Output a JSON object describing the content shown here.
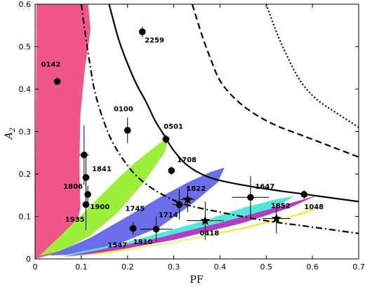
{
  "chart_data": {
    "type": "scatter",
    "xlabel": "PF",
    "ylabel_main": "A",
    "ylabel_sub": "2",
    "xlim": [
      0,
      0.7
    ],
    "ylim": [
      0,
      0.6
    ],
    "xticks": [
      "0",
      "0.1",
      "0.2",
      "0.3",
      "0.4",
      "0.5",
      "0.6",
      "0.7"
    ],
    "yticks": [
      "0",
      "0.1",
      "0.2",
      "0.3",
      "0.4",
      "0.5",
      "0.6"
    ],
    "grid": false,
    "colors": {
      "pink": "#f0568c",
      "green": "#9df03a",
      "blue": "#6a6ee8",
      "cyan": "#4ee8d8",
      "purple": "#b43cc8",
      "yellow": "#f0f040"
    },
    "regions": [
      {
        "color": "pink",
        "boundary": [
          [
            0,
            0
          ],
          [
            0.003,
            0.6
          ],
          [
            0.115,
            0.6
          ],
          [
            0.12,
            0.54
          ],
          [
            0.108,
            0.45
          ],
          [
            0.098,
            0.34
          ],
          [
            0.096,
            0.22
          ],
          [
            0.098,
            0.12
          ],
          [
            0.085,
            0.05
          ],
          [
            0.05,
            0.015
          ]
        ]
      },
      {
        "color": "green",
        "boundary": [
          [
            0.01,
            0.008
          ],
          [
            0.06,
            0.06
          ],
          [
            0.12,
            0.125
          ],
          [
            0.18,
            0.19
          ],
          [
            0.22,
            0.23
          ],
          [
            0.26,
            0.265
          ],
          [
            0.29,
            0.288
          ],
          [
            0.28,
            0.25
          ],
          [
            0.235,
            0.18
          ],
          [
            0.18,
            0.11
          ],
          [
            0.12,
            0.055
          ],
          [
            0.06,
            0.02
          ]
        ]
      },
      {
        "color": "blue",
        "boundary": [
          [
            0.03,
            0.008
          ],
          [
            0.12,
            0.05
          ],
          [
            0.2,
            0.1
          ],
          [
            0.27,
            0.145
          ],
          [
            0.33,
            0.18
          ],
          [
            0.38,
            0.205
          ],
          [
            0.41,
            0.215
          ],
          [
            0.395,
            0.18
          ],
          [
            0.34,
            0.13
          ],
          [
            0.27,
            0.075
          ],
          [
            0.18,
            0.035
          ],
          [
            0.1,
            0.012
          ]
        ]
      },
      {
        "color": "cyan",
        "boundary": [
          [
            0.05,
            0.006
          ],
          [
            0.2,
            0.04
          ],
          [
            0.35,
            0.085
          ],
          [
            0.45,
            0.12
          ],
          [
            0.52,
            0.14
          ],
          [
            0.56,
            0.148
          ],
          [
            0.52,
            0.12
          ],
          [
            0.42,
            0.085
          ],
          [
            0.3,
            0.05
          ],
          [
            0.15,
            0.018
          ]
        ]
      },
      {
        "color": "purple",
        "boundary": [
          [
            0.06,
            0.005
          ],
          [
            0.25,
            0.045
          ],
          [
            0.4,
            0.085
          ],
          [
            0.5,
            0.115
          ],
          [
            0.58,
            0.14
          ],
          [
            0.61,
            0.15
          ],
          [
            0.55,
            0.12
          ],
          [
            0.45,
            0.085
          ],
          [
            0.3,
            0.045
          ],
          [
            0.15,
            0.015
          ]
        ]
      },
      {
        "color": "yellow",
        "boundary": [
          [
            0.07,
            0.004
          ],
          [
            0.3,
            0.04
          ],
          [
            0.45,
            0.075
          ],
          [
            0.55,
            0.1
          ],
          [
            0.62,
            0.125
          ],
          [
            0.645,
            0.135
          ],
          [
            0.58,
            0.105
          ],
          [
            0.45,
            0.07
          ],
          [
            0.3,
            0.038
          ],
          [
            0.15,
            0.012
          ]
        ]
      }
    ],
    "curves": [
      {
        "style": "solid",
        "points": [
          [
            0.16,
            0.6
          ],
          [
            0.18,
            0.52
          ],
          [
            0.2,
            0.46
          ],
          [
            0.22,
            0.41
          ],
          [
            0.24,
            0.37
          ],
          [
            0.26,
            0.325
          ],
          [
            0.28,
            0.29
          ],
          [
            0.3,
            0.255
          ],
          [
            0.33,
            0.22
          ],
          [
            0.37,
            0.195
          ],
          [
            0.42,
            0.18
          ],
          [
            0.5,
            0.165
          ],
          [
            0.6,
            0.15
          ],
          [
            0.7,
            0.135
          ]
        ]
      },
      {
        "style": "dashed",
        "points": [
          [
            0.34,
            0.6
          ],
          [
            0.36,
            0.53
          ],
          [
            0.38,
            0.47
          ],
          [
            0.4,
            0.42
          ],
          [
            0.43,
            0.38
          ],
          [
            0.47,
            0.345
          ],
          [
            0.52,
            0.315
          ],
          [
            0.58,
            0.29
          ],
          [
            0.64,
            0.265
          ],
          [
            0.7,
            0.24
          ]
        ]
      },
      {
        "style": "dotted",
        "points": [
          [
            0.5,
            0.6
          ],
          [
            0.52,
            0.54
          ],
          [
            0.54,
            0.49
          ],
          [
            0.56,
            0.445
          ],
          [
            0.58,
            0.41
          ],
          [
            0.61,
            0.375
          ],
          [
            0.65,
            0.345
          ],
          [
            0.7,
            0.31
          ]
        ]
      },
      {
        "style": "dashdot",
        "points": [
          [
            0.1,
            0.6
          ],
          [
            0.11,
            0.52
          ],
          [
            0.12,
            0.45
          ],
          [
            0.13,
            0.39
          ],
          [
            0.15,
            0.32
          ],
          [
            0.17,
            0.27
          ],
          [
            0.2,
            0.22
          ],
          [
            0.23,
            0.185
          ],
          [
            0.27,
            0.155
          ],
          [
            0.32,
            0.13
          ],
          [
            0.4,
            0.11
          ],
          [
            0.5,
            0.09
          ],
          [
            0.6,
            0.075
          ],
          [
            0.7,
            0.06
          ]
        ]
      }
    ],
    "points": [
      {
        "label": "0142",
        "x": 0.048,
        "y": 0.418,
        "xerr": 0.0,
        "yerr": 0.0,
        "marker": "circle",
        "lx": -0.035,
        "ly": 0.035
      },
      {
        "label": "2259",
        "x": 0.232,
        "y": 0.535,
        "xerr": 0.0,
        "yerr": 0.012,
        "marker": "circle",
        "lx": 0.005,
        "ly": -0.025
      },
      {
        "label": "0100",
        "x": 0.2,
        "y": 0.303,
        "xerr": 0.005,
        "yerr": 0.03,
        "marker": "circle",
        "lx": -0.03,
        "ly": 0.045
      },
      {
        "label": "0501",
        "x": 0.283,
        "y": 0.282,
        "xerr": 0.008,
        "yerr": 0.01,
        "marker": "circle",
        "lx": -0.005,
        "ly": 0.025
      },
      {
        "label": "1708",
        "x": 0.295,
        "y": 0.208,
        "xerr": 0.005,
        "yerr": 0.01,
        "marker": "circle",
        "lx": 0.012,
        "ly": 0.02
      },
      {
        "label": "1841",
        "x": 0.11,
        "y": 0.192,
        "xerr": 0.008,
        "yerr": 0.06,
        "marker": "circle",
        "lx": 0.013,
        "ly": 0.015
      },
      {
        "label": "1806",
        "x": 0.106,
        "y": 0.245,
        "xerr": 0.01,
        "yerr": 0.07,
        "marker": "circle",
        "lx": -0.045,
        "ly": -0.08
      },
      {
        "label": "1900",
        "x": 0.114,
        "y": 0.152,
        "xerr": 0.005,
        "yerr": 0.02,
        "marker": "circle",
        "lx": 0.005,
        "ly": -0.035
      },
      {
        "label": "1935",
        "x": 0.11,
        "y": 0.128,
        "xerr": 0.008,
        "yerr": 0.06,
        "marker": "circle",
        "lx": -0.045,
        "ly": -0.04
      },
      {
        "label": "1745",
        "x": 0.21,
        "y": 0.193,
        "xerr": 0.0,
        "yerr": 0.0,
        "marker": "none",
        "lx": -0.015,
        "ly": -0.08
      },
      {
        "label": "1822",
        "x": 0.33,
        "y": 0.14,
        "xerr": 0.015,
        "yerr": 0.03,
        "marker": "star",
        "lx": -0.003,
        "ly": 0.02
      },
      {
        "label": "1714",
        "x": 0.312,
        "y": 0.128,
        "xerr": 0.015,
        "yerr": 0.035,
        "marker": "circle",
        "lx": -0.045,
        "ly": -0.03
      },
      {
        "label": "1647",
        "x": 0.466,
        "y": 0.145,
        "xerr": 0.04,
        "yerr": 0.05,
        "marker": "circle",
        "lx": 0.01,
        "ly": 0.02
      },
      {
        "label": "1048",
        "x": 0.582,
        "y": 0.152,
        "xerr": 0.005,
        "yerr": 0.01,
        "marker": "circle",
        "lx": 0.0,
        "ly": -0.035
      },
      {
        "label": "1852",
        "x": 0.522,
        "y": 0.095,
        "xerr": 0.03,
        "yerr": 0.035,
        "marker": "star",
        "lx": -0.012,
        "ly": 0.025
      },
      {
        "label": "0418",
        "x": 0.368,
        "y": 0.09,
        "xerr": 0.04,
        "yerr": 0.045,
        "marker": "star",
        "lx": -0.012,
        "ly": -0.035
      },
      {
        "label": "1810",
        "x": 0.262,
        "y": 0.07,
        "xerr": 0.035,
        "yerr": 0.03,
        "marker": "circle",
        "lx": -0.05,
        "ly": -0.035
      },
      {
        "label": "1547",
        "x": 0.212,
        "y": 0.072,
        "xerr": 0.008,
        "yerr": 0.015,
        "marker": "circle",
        "lx": -0.055,
        "ly": -0.045
      }
    ]
  }
}
